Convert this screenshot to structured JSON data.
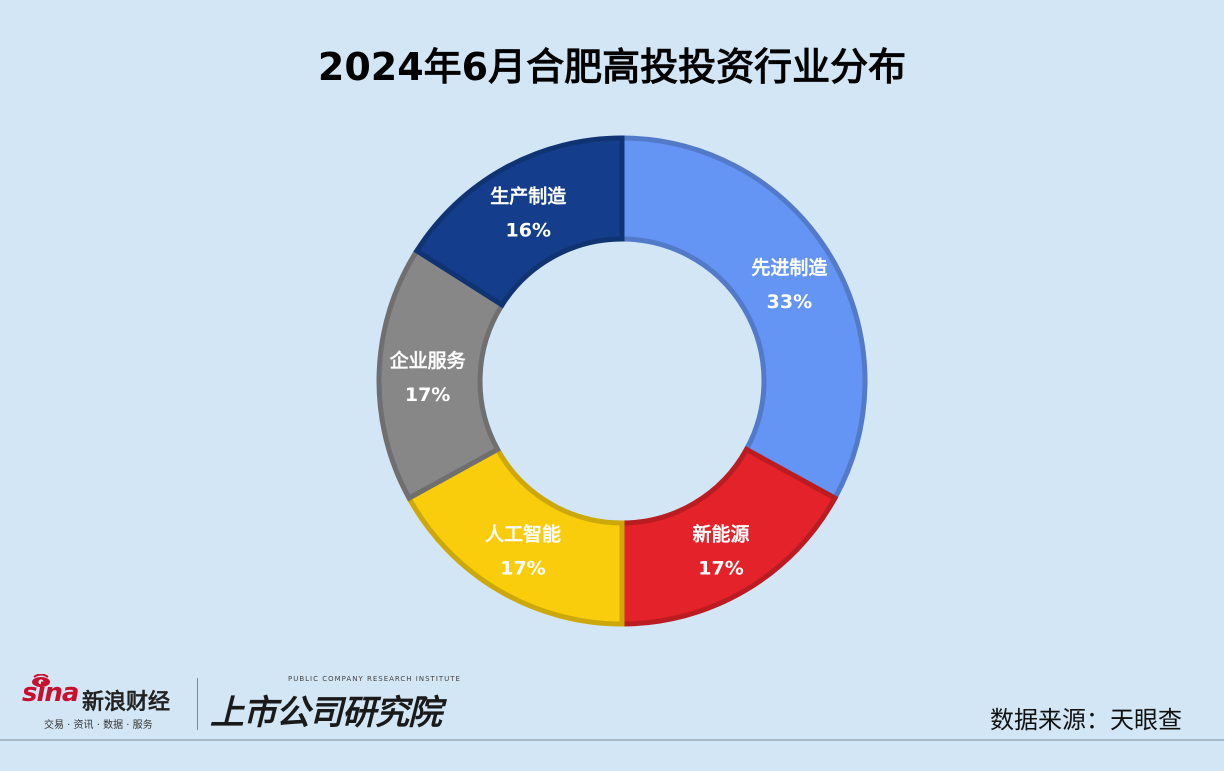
{
  "chart_data": {
    "type": "pie",
    "variant": "donut",
    "title": "2024年6月合肥高投投资行业分布",
    "slices": [
      {
        "label": "先进制造",
        "value": 33,
        "display": "33%",
        "color": "#6495f5"
      },
      {
        "label": "新能源",
        "value": 17,
        "display": "17%",
        "color": "#e3222a"
      },
      {
        "label": "人工智能",
        "value": 17,
        "display": "17%",
        "color": "#facd0c"
      },
      {
        "label": "企业服务",
        "value": 17,
        "display": "17%",
        "color": "#878787"
      },
      {
        "label": "生产制造",
        "value": 16,
        "display": "16%",
        "color": "#143e8c"
      }
    ]
  },
  "footer": {
    "sina_brand": "sina",
    "sina_name": "新浪财经",
    "sina_tagline": "交易 · 资讯 · 数据 · 服务",
    "institute_en": "PUBLIC COMPANY RESEARCH INSTITUTE",
    "institute_cn": "上市公司研究院",
    "source": "数据来源：天眼查"
  },
  "colors": {
    "background": "#d3e6f5",
    "sina_red": "#c8102e"
  }
}
